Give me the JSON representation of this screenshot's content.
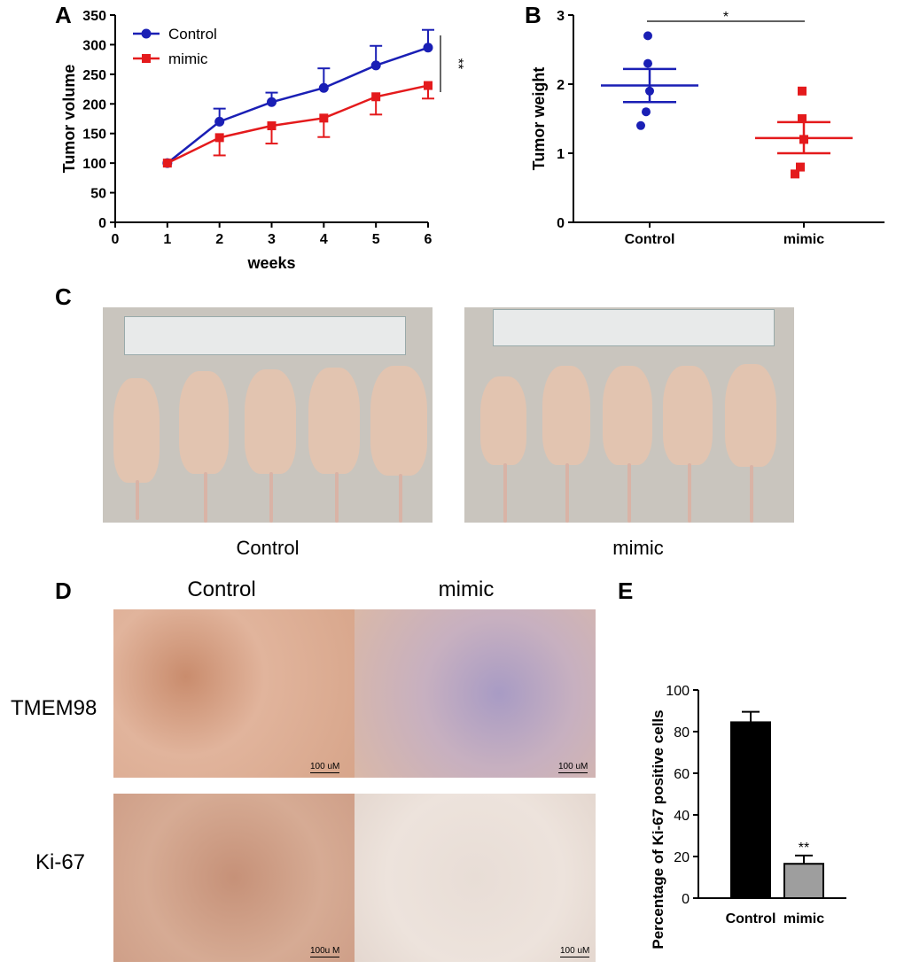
{
  "panels": {
    "A": "A",
    "B": "B",
    "C": "C",
    "D": "D",
    "E": "E"
  },
  "colors": {
    "control_blue": "#1a1fb5",
    "mimic_red": "#e41a1c",
    "bar_control": "#000000",
    "bar_mimic": "#9e9e9e"
  },
  "chart_data": [
    {
      "panel": "A",
      "type": "line",
      "xlabel": "weeks",
      "ylabel": "Tumor volume",
      "xlim": [
        0,
        6
      ],
      "ylim": [
        0,
        350
      ],
      "xticks": [
        "0",
        "1",
        "2",
        "3",
        "4",
        "5",
        "6"
      ],
      "yticks": [
        "0",
        "50",
        "100",
        "150",
        "200",
        "250",
        "300",
        "350"
      ],
      "x": [
        1,
        2,
        3,
        4,
        5,
        6
      ],
      "series": [
        {
          "name": "Control",
          "values": [
            100,
            170,
            203,
            227,
            265,
            295
          ],
          "errors": [
            0,
            22,
            16,
            33,
            33,
            30
          ],
          "color": "#1a1fb5",
          "marker": "circle"
        },
        {
          "name": "mimic",
          "values": [
            100,
            143,
            163,
            176,
            212,
            231
          ],
          "errors": [
            0,
            30,
            30,
            32,
            30,
            22
          ],
          "color": "#e41a1c",
          "marker": "square"
        }
      ],
      "legend": "top-left",
      "annotation": "**"
    },
    {
      "panel": "B",
      "type": "scatter",
      "ylabel": "Tumor weight",
      "categories": [
        "Control",
        "mimic"
      ],
      "ylim": [
        0,
        3
      ],
      "yticks": [
        "0",
        "1",
        "2",
        "3"
      ],
      "series": [
        {
          "name": "Control",
          "points": [
            2.7,
            2.3,
            1.9,
            1.6,
            1.4
          ],
          "mean": 1.98,
          "sem_low": 1.74,
          "sem_high": 2.22,
          "color": "#1a1fb5"
        },
        {
          "name": "mimic",
          "points": [
            1.9,
            1.5,
            1.2,
            0.8,
            0.7
          ],
          "mean": 1.22,
          "sem_low": 1.0,
          "sem_high": 1.45,
          "color": "#e41a1c"
        }
      ],
      "annotation": "*"
    },
    {
      "panel": "E",
      "type": "bar",
      "ylabel": "Percentage of Ki-67 positive cells",
      "categories": [
        "Control",
        "mimic"
      ],
      "values": [
        84.5,
        16.5
      ],
      "errors": [
        5,
        4
      ],
      "ylim": [
        0,
        100
      ],
      "yticks": [
        "0",
        "20",
        "40",
        "60",
        "80",
        "100"
      ],
      "annotation": "**"
    }
  ],
  "panelC": {
    "captions": [
      "Control",
      "mimic"
    ]
  },
  "panelD": {
    "columns": [
      "Control",
      "mimic"
    ],
    "rows": [
      "TMEM98",
      "Ki-67"
    ],
    "scalebars": [
      "100 uM",
      "100 uM",
      "100u M",
      "100 uM"
    ]
  }
}
